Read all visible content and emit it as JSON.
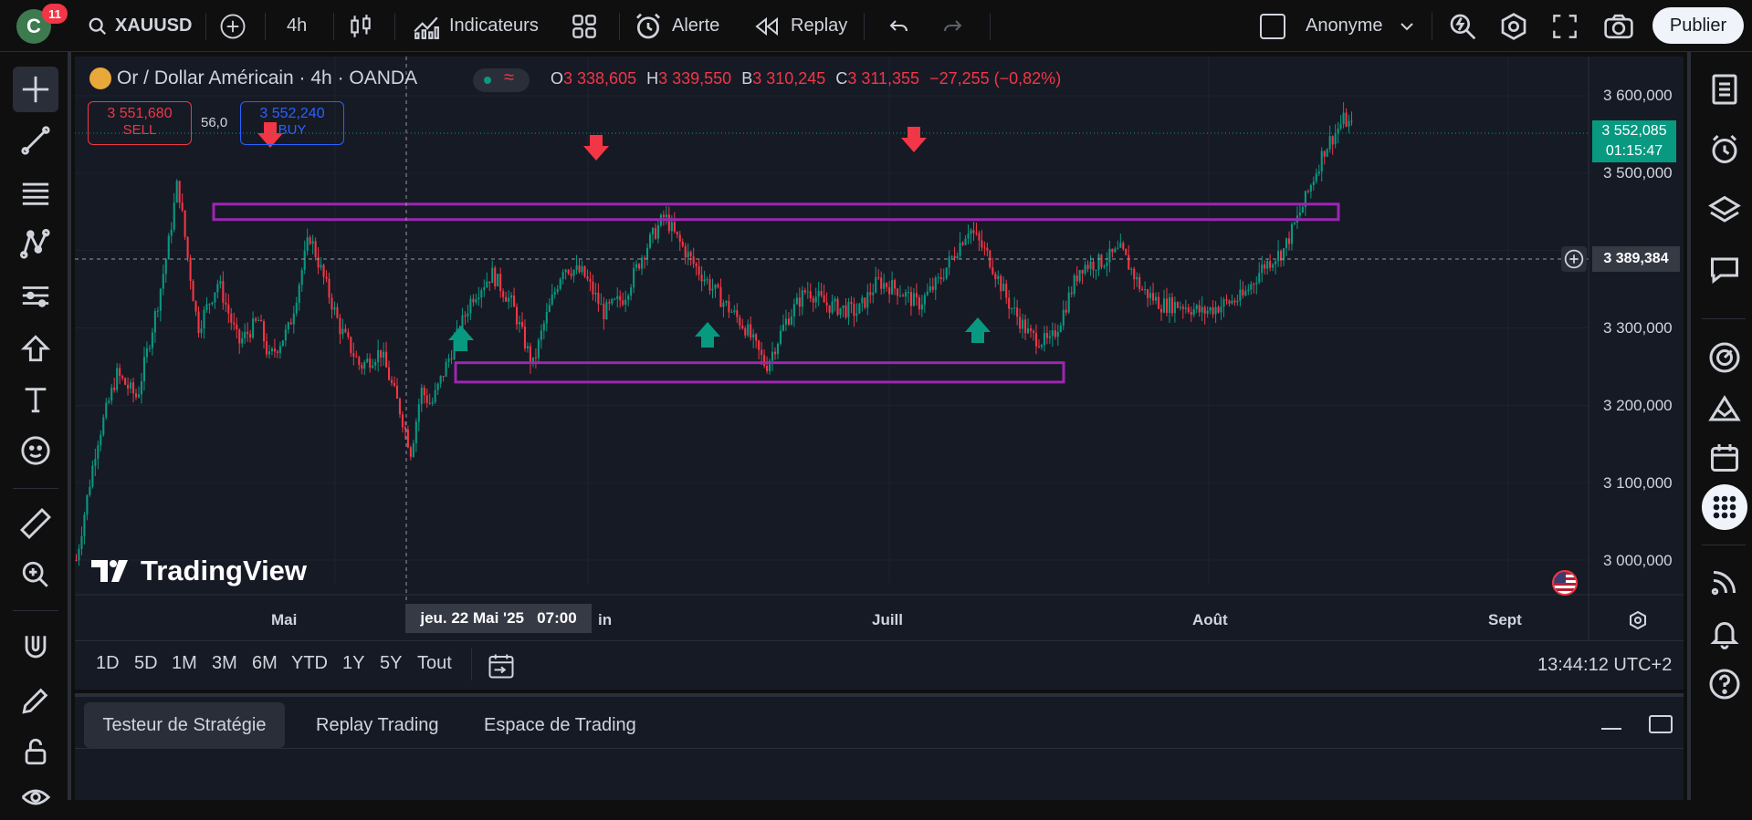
{
  "topbar": {
    "avatar_letter": "C",
    "notif_count": "11",
    "symbol": "XAUUSD",
    "interval": "4h",
    "indicators": "Indicateurs",
    "alert": "Alerte",
    "replay": "Replay",
    "layout_name": "Anonyme",
    "publish": "Publier"
  },
  "legend": {
    "title": "Or / Dollar Américain · 4h · OANDA",
    "o_label": "O",
    "o_val": "3 338,605",
    "h_label": "H",
    "h_val": "3 339,550",
    "l_label": "B",
    "l_val": "3 310,245",
    "c_label": "C",
    "c_val": "3 311,355",
    "change": "−27,255 (−0,82%)",
    "sell_price": "3 551,680",
    "sell_label": "SELL",
    "spread": "56,0",
    "buy_price": "3 552,240",
    "buy_label": "BUY"
  },
  "price_axis": {
    "ticks": [
      "3 600,000",
      "3 500,000",
      "3 300,000",
      "3 200,000",
      "3 100,000",
      "3 000,000"
    ],
    "current_price": "3 552,085",
    "countdown": "01:15:47",
    "crosshair_price": "3 389,384"
  },
  "time_axis": {
    "labels": [
      "Mai",
      "in",
      "Juill",
      "Août",
      "Sept"
    ],
    "crosshair_time": "jeu. 22 Mai '25   07:00"
  },
  "watermark": "TradingView",
  "timeframes": [
    "1D",
    "5D",
    "1M",
    "3M",
    "6M",
    "YTD",
    "1Y",
    "5Y",
    "Tout"
  ],
  "clock": "13:44:12 UTC+2",
  "bottom_tabs": [
    "Testeur de Stratégie",
    "Replay Trading",
    "Espace de Trading"
  ],
  "colors": {
    "up": "#089981",
    "down": "#f23645",
    "zone": "#9c27b0",
    "bg": "#161a25",
    "accent": "#2962ff"
  },
  "chart_data": {
    "type": "candlestick",
    "title": "Or / Dollar Américain · 4h · OANDA",
    "ylim": [
      2960,
      3620
    ],
    "resistance_zone": [
      3440,
      3460
    ],
    "support_zone": [
      3230,
      3255
    ],
    "path": [
      [
        0,
        3000
      ],
      [
        2,
        3150
      ],
      [
        4,
        3240
      ],
      [
        6,
        3210
      ],
      [
        8,
        3330
      ],
      [
        9,
        3400
      ],
      [
        10,
        3490
      ],
      [
        11,
        3390
      ],
      [
        12,
        3300
      ],
      [
        14,
        3360
      ],
      [
        16,
        3280
      ],
      [
        18,
        3310
      ],
      [
        19,
        3260
      ],
      [
        21,
        3300
      ],
      [
        22,
        3360
      ],
      [
        23,
        3420
      ],
      [
        24,
        3380
      ],
      [
        26,
        3300
      ],
      [
        28,
        3250
      ],
      [
        30,
        3270
      ],
      [
        32,
        3190
      ],
      [
        33,
        3140
      ],
      [
        34,
        3220
      ],
      [
        35,
        3200
      ],
      [
        37,
        3270
      ],
      [
        39,
        3340
      ],
      [
        41,
        3370
      ],
      [
        43,
        3330
      ],
      [
        45,
        3250
      ],
      [
        46,
        3300
      ],
      [
        48,
        3380
      ],
      [
        50,
        3370
      ],
      [
        52,
        3320
      ],
      [
        54,
        3340
      ],
      [
        56,
        3400
      ],
      [
        58,
        3445
      ],
      [
        59,
        3420
      ],
      [
        61,
        3380
      ],
      [
        64,
        3330
      ],
      [
        66,
        3300
      ],
      [
        68,
        3250
      ],
      [
        70,
        3310
      ],
      [
        72,
        3350
      ],
      [
        74,
        3330
      ],
      [
        77,
        3320
      ],
      [
        79,
        3360
      ],
      [
        81,
        3350
      ],
      [
        83,
        3330
      ],
      [
        85,
        3360
      ],
      [
        88,
        3430
      ],
      [
        90,
        3390
      ],
      [
        92,
        3330
      ],
      [
        94,
        3290
      ],
      [
        96,
        3280
      ],
      [
        97,
        3310
      ],
      [
        99,
        3380
      ],
      [
        101,
        3385
      ],
      [
        103,
        3400
      ],
      [
        105,
        3350
      ],
      [
        107,
        3330
      ],
      [
        109,
        3330
      ],
      [
        111,
        3320
      ],
      [
        113,
        3330
      ],
      [
        115,
        3340
      ],
      [
        117,
        3380
      ],
      [
        119,
        3400
      ],
      [
        121,
        3460
      ],
      [
        123,
        3530
      ],
      [
        125,
        3570
      ],
      [
        126,
        3555
      ]
    ]
  }
}
